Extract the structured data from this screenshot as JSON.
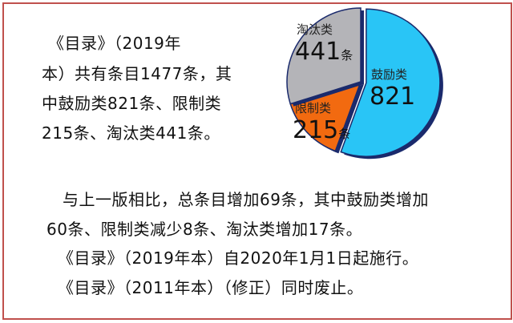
{
  "text": {
    "top_lines": [
      "《目录》（2019年",
      "本）共有条目1477条，其",
      "中鼓励类821条、限制类",
      "215条、淘汰类441条。"
    ],
    "bottom_lines": [
      "与上一版相比，总条目增加69条，其中鼓励类增加",
      "60条、限制类减少8条、淘汰类增加17条。",
      "《目录》（2019年本）自2020年1月1日起施行。",
      "《目录》（2011年本）（修正）同时废止。"
    ]
  },
  "colors": {
    "frame": "#c0504d",
    "encourage": "#29c5f6",
    "restrict": "#f26a10",
    "eliminate": "#b4b4b8",
    "edge": "#1a2a6c"
  },
  "chart_data": {
    "type": "pie",
    "slices": [
      {
        "label": "鼓励类",
        "value": 821,
        "value_text": "821",
        "unit": "",
        "color": "#29c5f6",
        "exploded": true
      },
      {
        "label": "限制类",
        "value": 215,
        "value_text": "215",
        "unit": "条",
        "color": "#f26a10"
      },
      {
        "label": "淘汰类",
        "value": 441,
        "value_text": "441",
        "unit": "条",
        "color": "#b4b4b8"
      }
    ]
  }
}
